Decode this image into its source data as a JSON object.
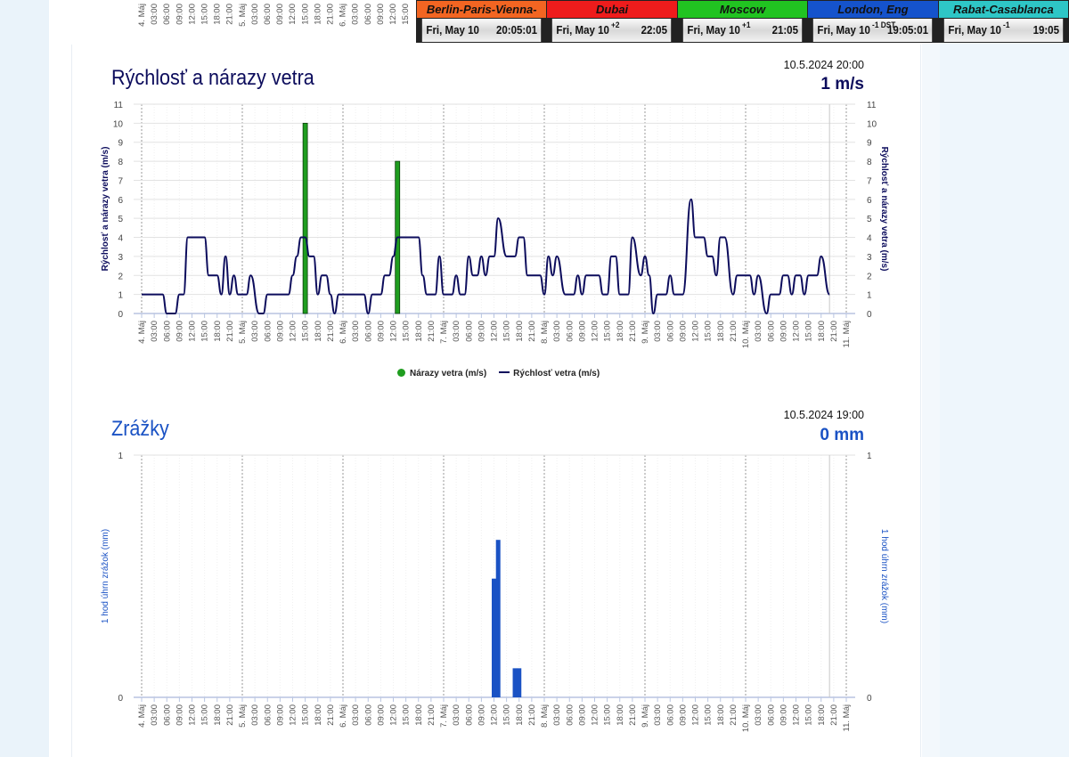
{
  "clocks": [
    {
      "city": "Berlin-Paris-Vienna-Roma",
      "date": "Fri, May 10",
      "offset": "",
      "time": "20:05:01",
      "color": "#f26522"
    },
    {
      "city": "Dubai",
      "date": "Fri, May 10",
      "offset": "+2",
      "time": "22:05",
      "color": "#ee1c1c"
    },
    {
      "city": "Moscow",
      "date": "Fri, May 10",
      "offset": "+1",
      "time": "21:05",
      "color": "#21c321"
    },
    {
      "city": "London, Eng",
      "date": "Fri, May 10",
      "offset": "-1 DST",
      "time": "19:05:01",
      "color": "#1553cc"
    },
    {
      "city": "Rabat-Casablanca",
      "date": "Fri, May 10",
      "offset": "-1",
      "time": "19:05",
      "color": "#2ec6c6"
    }
  ],
  "x_ticks": [
    "4. Máj",
    "03:00",
    "06:00",
    "09:00",
    "12:00",
    "15:00",
    "18:00",
    "21:00",
    "5. Máj",
    "03:00",
    "06:00",
    "09:00",
    "12:00",
    "15:00",
    "18:00",
    "21:00",
    "6. Máj",
    "03:00",
    "06:00",
    "09:00",
    "12:00",
    "15:00",
    "18:00",
    "21:00",
    "7. Máj",
    "03:00",
    "06:00",
    "09:00",
    "12:00",
    "15:00",
    "18:00",
    "21:00",
    "8. Máj",
    "03:00",
    "06:00",
    "09:00",
    "12:00",
    "15:00",
    "18:00",
    "21:00",
    "9. Máj",
    "03:00",
    "06:00",
    "09:00",
    "12:00",
    "15:00",
    "18:00",
    "21:00",
    "10. Máj",
    "03:00",
    "06:00",
    "09:00",
    "12:00",
    "15:00",
    "18:00",
    "21:00",
    "11. Máj"
  ],
  "top_strip_ticks": [
    "4. Máj",
    "03:00",
    "06:00",
    "09:00",
    "12:00",
    "15:00",
    "18:00",
    "21:00",
    "5. Máj",
    "03:00",
    "06:00",
    "09:00",
    "12:00",
    "15:00",
    "18:00",
    "21:00",
    "6. Máj",
    "03:00",
    "06:00",
    "09:00",
    "12:00",
    "15:00"
  ],
  "wind": {
    "title": "Rýchlosť a nárazy vetra",
    "stamp": "10.5.2024 20:00",
    "current": "1 m/s",
    "color_title": "#0c0c5c",
    "chart_data": {
      "type": "line+bar",
      "ylabel": "Rýchlosť a nárazy vetra (m/s)",
      "ylabel_right": "Rýchlosť a nárazy vetra (m/s)",
      "ylim": [
        0,
        11
      ],
      "yticks": [
        "0",
        "1",
        "2",
        "3",
        "4",
        "5",
        "6",
        "7",
        "8",
        "9",
        "10",
        "11"
      ],
      "xlim": [
        "2024-05-04 00:00",
        "2024-05-11 00:00"
      ],
      "grid": true,
      "legend_position": "bottom",
      "series": [
        {
          "name": "Nárazy vetra (m/s)",
          "type": "bar",
          "color": "#1f9d1f",
          "points": [
            [
              "2024-05-05 15:00",
              10
            ],
            [
              "2024-05-06 13:00",
              8
            ]
          ]
        },
        {
          "name": "Rýchlosť vetra (m/s)",
          "type": "line",
          "color": "#0c0c5c",
          "points": [
            [
              "2024-05-04 00:00",
              1
            ],
            [
              "2024-05-04 05:00",
              1
            ],
            [
              "2024-05-04 06:00",
              0
            ],
            [
              "2024-05-04 08:00",
              0
            ],
            [
              "2024-05-04 09:00",
              1
            ],
            [
              "2024-05-04 10:00",
              1
            ],
            [
              "2024-05-04 11:00",
              4
            ],
            [
              "2024-05-04 15:00",
              4
            ],
            [
              "2024-05-04 16:00",
              2
            ],
            [
              "2024-05-04 18:00",
              2
            ],
            [
              "2024-05-04 19:00",
              1
            ],
            [
              "2024-05-04 20:00",
              3
            ],
            [
              "2024-05-04 21:00",
              1
            ],
            [
              "2024-05-04 22:00",
              2
            ],
            [
              "2024-05-04 23:00",
              1
            ],
            [
              "2024-05-05 01:00",
              1
            ],
            [
              "2024-05-05 02:00",
              2
            ],
            [
              "2024-05-05 04:00",
              0
            ],
            [
              "2024-05-05 05:00",
              0
            ],
            [
              "2024-05-05 06:00",
              1
            ],
            [
              "2024-05-05 11:00",
              1
            ],
            [
              "2024-05-05 12:00",
              2
            ],
            [
              "2024-05-05 13:00",
              3
            ],
            [
              "2024-05-05 14:00",
              4
            ],
            [
              "2024-05-05 15:00",
              4
            ],
            [
              "2024-05-05 16:00",
              3
            ],
            [
              "2024-05-05 17:00",
              3
            ],
            [
              "2024-05-05 18:00",
              1
            ],
            [
              "2024-05-05 19:00",
              2
            ],
            [
              "2024-05-05 20:00",
              2
            ],
            [
              "2024-05-05 21:00",
              1
            ],
            [
              "2024-05-05 22:00",
              0
            ],
            [
              "2024-05-05 23:00",
              1
            ],
            [
              "2024-05-06 05:00",
              1
            ],
            [
              "2024-05-06 06:00",
              0
            ],
            [
              "2024-05-06 07:00",
              1
            ],
            [
              "2024-05-06 09:00",
              1
            ],
            [
              "2024-05-06 10:00",
              2
            ],
            [
              "2024-05-06 11:00",
              2
            ],
            [
              "2024-05-06 12:00",
              3
            ],
            [
              "2024-05-06 13:00",
              4
            ],
            [
              "2024-05-06 18:00",
              4
            ],
            [
              "2024-05-06 19:00",
              2
            ],
            [
              "2024-05-06 20:00",
              1
            ],
            [
              "2024-05-06 22:00",
              1
            ],
            [
              "2024-05-06 23:00",
              3
            ],
            [
              "2024-05-07 00:00",
              1
            ],
            [
              "2024-05-07 02:00",
              1
            ],
            [
              "2024-05-07 03:00",
              2
            ],
            [
              "2024-05-07 04:00",
              1
            ],
            [
              "2024-05-07 05:00",
              1
            ],
            [
              "2024-05-07 06:00",
              3
            ],
            [
              "2024-05-07 07:00",
              2
            ],
            [
              "2024-05-07 08:00",
              2
            ],
            [
              "2024-05-07 09:00",
              3
            ],
            [
              "2024-05-07 10:00",
              2
            ],
            [
              "2024-05-07 11:00",
              3
            ],
            [
              "2024-05-07 12:00",
              3
            ],
            [
              "2024-05-07 13:00",
              5
            ],
            [
              "2024-05-07 15:00",
              3
            ],
            [
              "2024-05-07 17:00",
              3
            ],
            [
              "2024-05-07 18:00",
              4
            ],
            [
              "2024-05-07 19:00",
              4
            ],
            [
              "2024-05-07 20:00",
              2
            ],
            [
              "2024-05-07 23:00",
              2
            ],
            [
              "2024-05-08 00:00",
              1
            ],
            [
              "2024-05-08 01:00",
              3
            ],
            [
              "2024-05-08 02:00",
              2
            ],
            [
              "2024-05-08 03:00",
              3
            ],
            [
              "2024-05-08 05:00",
              1
            ],
            [
              "2024-05-08 07:00",
              1
            ],
            [
              "2024-05-08 08:00",
              2
            ],
            [
              "2024-05-08 09:00",
              1
            ],
            [
              "2024-05-08 10:00",
              2
            ],
            [
              "2024-05-08 13:00",
              2
            ],
            [
              "2024-05-08 14:00",
              1
            ],
            [
              "2024-05-08 15:00",
              1
            ],
            [
              "2024-05-08 16:00",
              3
            ],
            [
              "2024-05-08 17:00",
              3
            ],
            [
              "2024-05-08 18:00",
              1
            ],
            [
              "2024-05-08 20:00",
              1
            ],
            [
              "2024-05-08 21:00",
              4
            ],
            [
              "2024-05-08 23:00",
              2
            ],
            [
              "2024-05-09 00:00",
              3
            ],
            [
              "2024-05-09 01:00",
              2
            ],
            [
              "2024-05-09 02:00",
              0
            ],
            [
              "2024-05-09 03:00",
              1
            ],
            [
              "2024-05-09 05:00",
              1
            ],
            [
              "2024-05-09 06:00",
              2
            ],
            [
              "2024-05-09 07:00",
              1
            ],
            [
              "2024-05-09 09:00",
              1
            ],
            [
              "2024-05-09 11:00",
              6
            ],
            [
              "2024-05-09 12:00",
              4
            ],
            [
              "2024-05-09 14:00",
              4
            ],
            [
              "2024-05-09 15:00",
              3
            ],
            [
              "2024-05-09 16:00",
              3
            ],
            [
              "2024-05-09 17:00",
              2
            ],
            [
              "2024-05-09 18:00",
              4
            ],
            [
              "2024-05-09 19:00",
              4
            ],
            [
              "2024-05-09 21:00",
              1
            ],
            [
              "2024-05-09 22:00",
              2
            ],
            [
              "2024-05-10 01:00",
              2
            ],
            [
              "2024-05-10 02:00",
              1
            ],
            [
              "2024-05-10 03:00",
              2
            ],
            [
              "2024-05-10 05:00",
              0
            ],
            [
              "2024-05-10 06:00",
              1
            ],
            [
              "2024-05-10 08:00",
              1
            ],
            [
              "2024-05-10 09:00",
              2
            ],
            [
              "2024-05-10 10:00",
              2
            ],
            [
              "2024-05-10 11:00",
              1
            ],
            [
              "2024-05-10 12:00",
              2
            ],
            [
              "2024-05-10 13:00",
              2
            ],
            [
              "2024-05-10 14:00",
              1
            ],
            [
              "2024-05-10 15:00",
              2
            ],
            [
              "2024-05-10 17:00",
              2
            ],
            [
              "2024-05-10 18:00",
              3
            ],
            [
              "2024-05-10 20:00",
              1
            ]
          ]
        }
      ]
    }
  },
  "rain": {
    "title": "Zrážky",
    "stamp": "10.5.2024 19:00",
    "current": "0 mm",
    "color_title": "#1a52c4",
    "chart_data": {
      "type": "bar",
      "ylabel": "1 hod úhrn zrážok (mm)",
      "ylabel_right": "1 hod úhrn zrážok (mm)",
      "ylim": [
        0,
        1
      ],
      "yticks": [
        "0",
        "1"
      ],
      "xlim": [
        "2024-05-04 00:00",
        "2024-05-11 00:00"
      ],
      "grid": true,
      "series": [
        {
          "type": "bar",
          "color": "#1a52c4",
          "points": [
            [
              "2024-05-07 12:00",
              0.49
            ],
            [
              "2024-05-07 13:00",
              0.65
            ],
            [
              "2024-05-07 17:00",
              0.12
            ],
            [
              "2024-05-07 18:00",
              0.12
            ]
          ]
        }
      ]
    }
  }
}
